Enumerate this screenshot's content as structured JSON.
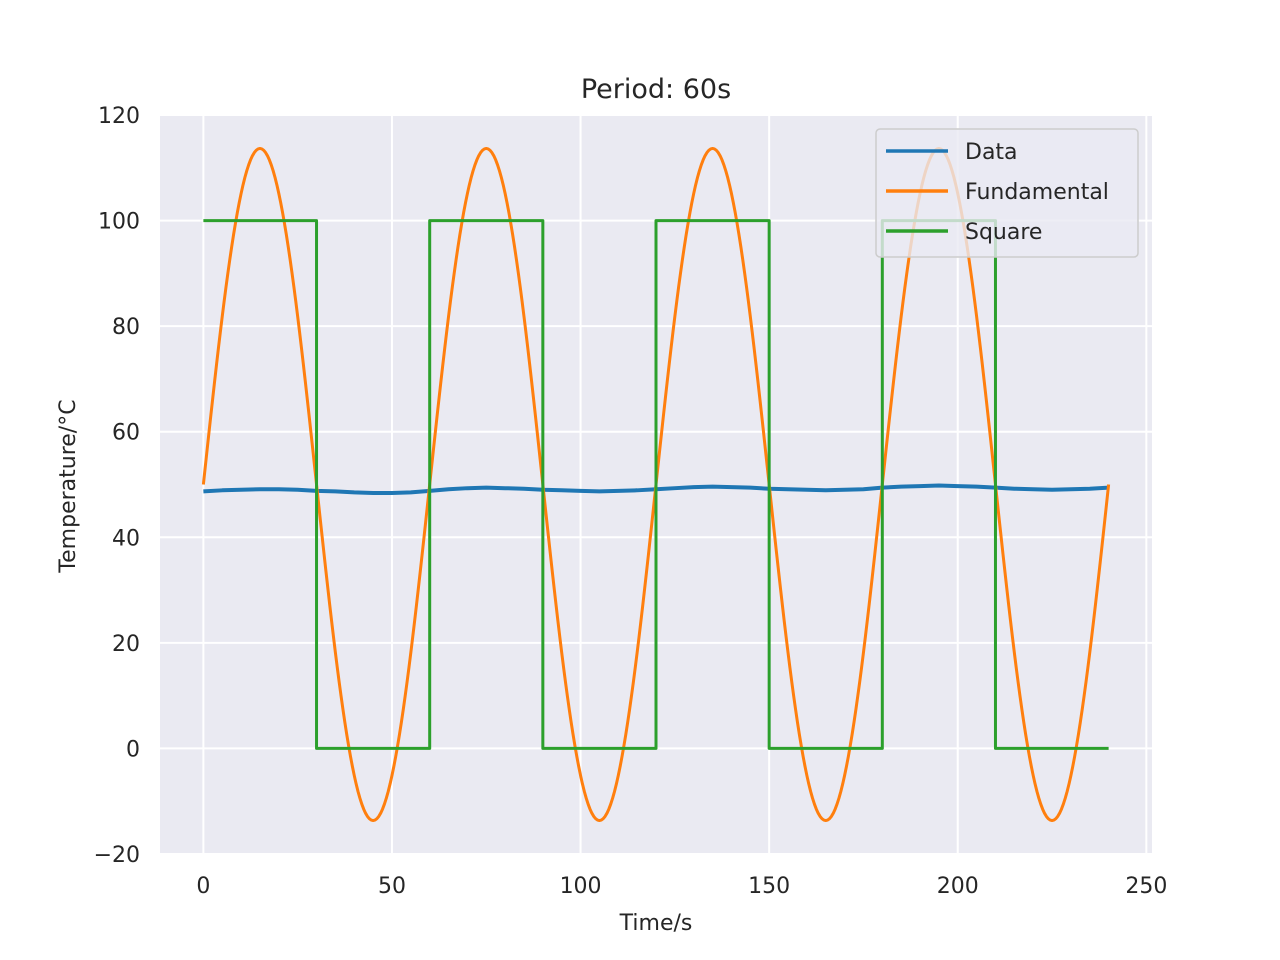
{
  "chart_data": {
    "type": "line",
    "title": "Period: 60s",
    "xlabel": "Time/s",
    "ylabel": "Temperature/°C",
    "xlim": [
      -11.5,
      251.5
    ],
    "ylim": [
      -20,
      120
    ],
    "xticks": [
      0,
      50,
      100,
      150,
      200,
      250
    ],
    "yticks": [
      -20,
      0,
      20,
      40,
      60,
      80,
      100,
      120
    ],
    "xtick_labels": [
      "0",
      "50",
      "100",
      "150",
      "200",
      "250"
    ],
    "ytick_labels": [
      "−20",
      "0",
      "20",
      "40",
      "60",
      "80",
      "100",
      "120"
    ],
    "grid": true,
    "legend_position": "top-right",
    "background_color": "#eaeaf2",
    "series": [
      {
        "name": "Data",
        "color": "#1f77b4",
        "x": [
          0,
          5,
          10,
          15,
          20,
          25,
          30,
          35,
          40,
          45,
          50,
          55,
          60,
          65,
          70,
          75,
          80,
          85,
          90,
          95,
          100,
          105,
          110,
          115,
          120,
          125,
          130,
          135,
          140,
          145,
          150,
          155,
          160,
          165,
          170,
          175,
          180,
          185,
          190,
          195,
          200,
          205,
          210,
          215,
          220,
          225,
          230,
          235,
          240
        ],
        "y": [
          48.7,
          48.9,
          49.0,
          49.1,
          49.1,
          49.0,
          48.8,
          48.7,
          48.5,
          48.4,
          48.4,
          48.5,
          48.8,
          49.1,
          49.3,
          49.4,
          49.3,
          49.2,
          49.0,
          48.9,
          48.8,
          48.7,
          48.8,
          48.9,
          49.1,
          49.3,
          49.5,
          49.6,
          49.5,
          49.4,
          49.2,
          49.1,
          49.0,
          48.9,
          49.0,
          49.1,
          49.4,
          49.6,
          49.7,
          49.8,
          49.7,
          49.6,
          49.4,
          49.2,
          49.1,
          49.0,
          49.1,
          49.2,
          49.4
        ]
      },
      {
        "name": "Fundamental",
        "color": "#ff7f0e",
        "function": "50 + 63.66*sin(2*pi*t/60)",
        "x_start": 0,
        "x_end": 240,
        "offset": 50,
        "amplitude": 63.66,
        "period": 60
      },
      {
        "name": "Square",
        "color": "#2ca02c",
        "x": [
          0,
          30,
          30,
          60,
          60,
          90,
          90,
          120,
          120,
          150,
          150,
          180,
          180,
          210,
          210,
          240
        ],
        "y": [
          100,
          100,
          0,
          0,
          100,
          100,
          0,
          0,
          100,
          100,
          0,
          0,
          100,
          100,
          0,
          0
        ]
      }
    ]
  }
}
